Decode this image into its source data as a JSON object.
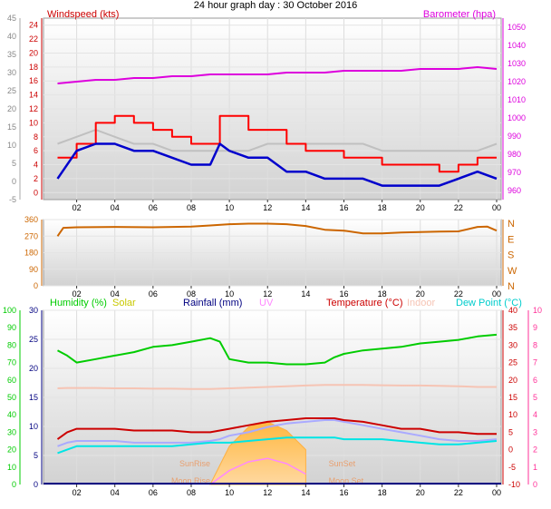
{
  "title": "24 hour graph day : 30 October 2016",
  "colors": {
    "wind_gust": "#ff0000",
    "wind_avg": "#0000cc",
    "barometer": "#dd00dd",
    "pressure_bg": "#c0c0c0",
    "direction": "#cc6600",
    "humidity": "#00cc00",
    "solar": "#c8c800",
    "rainfall": "#000080",
    "uv": "#ff88ff",
    "temperature": "#cc0000",
    "indoor": "#f6c4b4",
    "dew_point": "#00e5e5",
    "lavender": "#aaaaff",
    "sun_fill": "#ffb030",
    "pink_axis": "#ff3399"
  },
  "x_ticks": [
    "02",
    "04",
    "06",
    "08",
    "10",
    "12",
    "14",
    "16",
    "18",
    "20",
    "22",
    "00"
  ],
  "chart_data": [
    {
      "type": "line",
      "name": "wind",
      "left_axis": {
        "label": "Windspeed (kts)",
        "ticks": [
          -5,
          0,
          5,
          10,
          15,
          20,
          25,
          30,
          35,
          40,
          45
        ],
        "ylim": [
          -5,
          45
        ]
      },
      "left_axis_inner": {
        "ticks": [
          0,
          2,
          4,
          6,
          8,
          10,
          12,
          14,
          16,
          18,
          20,
          22,
          24
        ],
        "ylim": [
          -1,
          25
        ]
      },
      "right_axis": {
        "label": "Barometer (hpa)",
        "ticks": [
          960,
          970,
          980,
          990,
          1000,
          1010,
          1020,
          1030,
          1040,
          1050
        ],
        "ylim": [
          955,
          1055
        ]
      },
      "x_hours": [
        1.0,
        2.0,
        3.0,
        4.0,
        5.0,
        6.0,
        7.0,
        8.0,
        9.0,
        9.5,
        10.0,
        11.0,
        12.0,
        13.0,
        14.0,
        15.0,
        16.0,
        17.0,
        18.0,
        19.0,
        20.0,
        21.0,
        22.0,
        23.0,
        24.0
      ],
      "series": [
        {
          "name": "Windspeed gust",
          "values": [
            5,
            7,
            10,
            11,
            10,
            9,
            8,
            7,
            7,
            11,
            11,
            9,
            9,
            7,
            6,
            6,
            5,
            5,
            4,
            4,
            4,
            3,
            4,
            5,
            5
          ]
        },
        {
          "name": "Windspeed avg",
          "values": [
            2,
            6,
            7,
            7,
            6,
            6,
            5,
            4,
            4,
            7,
            6,
            5,
            5,
            3,
            3,
            2,
            2,
            2,
            1,
            1,
            1,
            1,
            2,
            3,
            2
          ]
        },
        {
          "name": "Barometer",
          "values": [
            1019,
            1020,
            1021,
            1021,
            1022,
            1022,
            1023,
            1023,
            1024,
            1024,
            1024,
            1024,
            1024,
            1025,
            1025,
            1025,
            1026,
            1026,
            1026,
            1026,
            1027,
            1027,
            1027,
            1028,
            1027
          ]
        },
        {
          "name": "pressure trace",
          "values": [
            7,
            8,
            9,
            8,
            7,
            7,
            6,
            6,
            6,
            6,
            6,
            6,
            7,
            7,
            7,
            7,
            7,
            7,
            6,
            6,
            6,
            6,
            6,
            6,
            7
          ]
        }
      ]
    },
    {
      "type": "line",
      "name": "direction",
      "left_axis": {
        "ticks": [
          0,
          90,
          180,
          270,
          360
        ],
        "ylim": [
          0,
          360
        ]
      },
      "right_axis": {
        "ticks": [
          "N",
          "W",
          "S",
          "E",
          "N"
        ]
      },
      "x_hours": [
        1.0,
        1.3,
        2.0,
        4.0,
        6.0,
        8.0,
        9.0,
        10.0,
        11.0,
        12.0,
        13.0,
        14.0,
        15.0,
        16.0,
        17.0,
        18.0,
        19.0,
        20.0,
        21.0,
        22.0,
        23.0,
        23.5,
        24.0
      ],
      "series": [
        {
          "name": "Wind direction",
          "values": [
            270,
            315,
            318,
            320,
            318,
            322,
            328,
            335,
            338,
            338,
            335,
            325,
            305,
            300,
            285,
            285,
            290,
            292,
            295,
            296,
            320,
            322,
            300
          ]
        }
      ]
    },
    {
      "type": "line",
      "name": "temperature",
      "legend": [
        "Humidity (%)",
        "Solar",
        "Rainfall (mm)",
        "UV",
        "Temperature (°C)",
        "Indoor",
        "Dew Point (°C)"
      ],
      "left_axis_humidity": {
        "ticks": [
          0,
          10,
          20,
          30,
          40,
          50,
          60,
          70,
          80,
          90,
          100
        ],
        "ylim": [
          0,
          100
        ]
      },
      "left_axis_rain": {
        "ticks": [
          0,
          5,
          10,
          15,
          20,
          25,
          30
        ],
        "ylim": [
          0,
          30
        ]
      },
      "right_axis_temp": {
        "ticks": [
          -10,
          -5,
          0,
          5,
          10,
          15,
          20,
          25,
          30,
          35,
          40
        ],
        "ylim": [
          -10,
          40
        ]
      },
      "right_axis_uv": {
        "ticks": [
          0,
          1,
          2,
          3,
          4,
          5,
          6,
          7,
          8,
          9,
          10
        ],
        "ylim": [
          0,
          10
        ]
      },
      "x_hours": [
        1.0,
        1.5,
        2.0,
        3.0,
        4.0,
        5.0,
        6.0,
        7.0,
        8.0,
        9.0,
        9.5,
        10.0,
        11.0,
        12.0,
        13.0,
        14.0,
        15.0,
        15.5,
        16.0,
        17.0,
        18.0,
        19.0,
        20.0,
        21.0,
        22.0,
        23.0,
        24.0
      ],
      "series": [
        {
          "name": "Humidity (%)",
          "values": [
            77,
            74,
            70,
            72,
            74,
            76,
            79,
            80,
            82,
            84,
            82,
            72,
            70,
            70,
            69,
            69,
            70,
            73,
            75,
            77,
            78,
            79,
            81,
            82,
            83,
            85,
            86
          ]
        },
        {
          "name": "Temperature (°C)",
          "values": [
            3,
            5,
            6,
            6,
            6,
            5.5,
            5.5,
            5.5,
            5,
            5,
            5.5,
            6,
            7,
            8,
            8.5,
            9,
            9,
            9,
            8.5,
            8,
            7,
            6,
            6,
            5,
            5,
            4.5,
            4.5
          ]
        },
        {
          "name": "Indoor",
          "values": [
            17.6,
            17.7,
            17.7,
            17.7,
            17.6,
            17.6,
            17.5,
            17.5,
            17.4,
            17.4,
            17.5,
            17.6,
            17.8,
            18,
            18.2,
            18.4,
            18.6,
            18.6,
            18.6,
            18.6,
            18.5,
            18.4,
            18.4,
            18.3,
            18.2,
            18,
            18
          ]
        },
        {
          "name": "lavender trace",
          "values": [
            1,
            2,
            2.5,
            2.5,
            2.5,
            2,
            2,
            2,
            2,
            2.5,
            3,
            4,
            5,
            6.5,
            7.5,
            8,
            8.5,
            8.5,
            8,
            7,
            6,
            5,
            4,
            3,
            2.5,
            2.5,
            3
          ]
        },
        {
          "name": "Dew Point (°C)",
          "values": [
            -1,
            0,
            1,
            1,
            1,
            1,
            1,
            1,
            1.5,
            2,
            2,
            2,
            2.5,
            3,
            3.5,
            3.5,
            3.5,
            3.5,
            3,
            3,
            3,
            2.5,
            2,
            1.5,
            1.5,
            2,
            2.5
          ]
        }
      ],
      "solar": {
        "x_hours": [
          9.0,
          10.0,
          11.0,
          12.0,
          13.0,
          14.0
        ],
        "values": [
          0,
          220,
          330,
          360,
          310,
          200
        ]
      },
      "uv": {
        "x_hours": [
          9.0,
          10.0,
          11.0,
          12.0,
          13.0,
          14.0
        ],
        "values": [
          0,
          0.8,
          1.3,
          1.5,
          1.2,
          0.6
        ]
      },
      "annotations": [
        "SunRise",
        "SunSet",
        "Moon Rise",
        "Moon Set"
      ]
    }
  ]
}
